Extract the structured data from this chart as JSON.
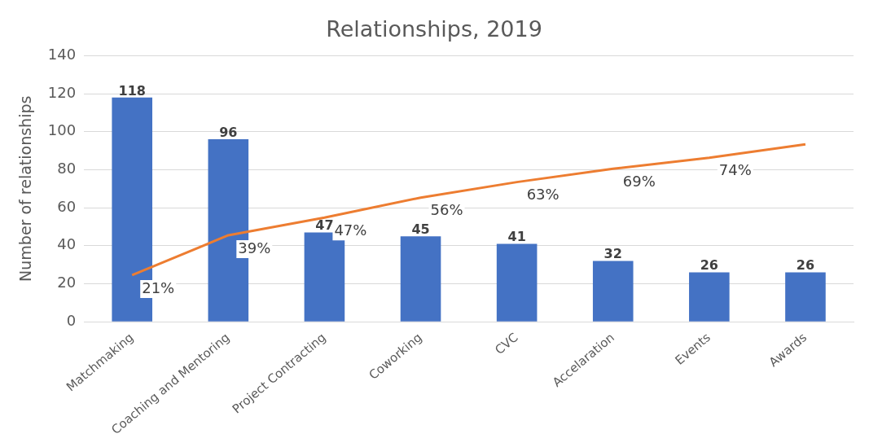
{
  "chart_data": {
    "type": "bar",
    "title": "Relationships, 2019",
    "ylabel": "Number of relationships",
    "categories": [
      "Matchmaking",
      "Coaching and Mentoring",
      "Project Contracting",
      "Coworking",
      "CVC",
      "Accelaration",
      "Events",
      "Awards"
    ],
    "series": [
      {
        "type": "bar",
        "color": "#4472c4",
        "values": [
          118,
          96,
          47,
          45,
          41,
          32,
          26,
          26
        ],
        "value_labels": [
          "118",
          "96",
          "47",
          "45",
          "41",
          "32",
          "26",
          "26"
        ]
      },
      {
        "type": "line",
        "axis": "y2",
        "color": "#ed7d31",
        "values": [
          21,
          39,
          47,
          56,
          63,
          69,
          74,
          80
        ],
        "value_labels": [
          "21%",
          "39%",
          "47%",
          "56%",
          "63%",
          "69%",
          "74%",
          null
        ]
      }
    ],
    "ylim": [
      0,
      140
    ],
    "yticks": [
      0,
      20,
      40,
      60,
      80,
      100,
      120,
      140
    ],
    "y2lim": [
      0,
      120
    ],
    "grid": "y",
    "legend": false,
    "marker": "none",
    "tick_labels": "xy"
  }
}
